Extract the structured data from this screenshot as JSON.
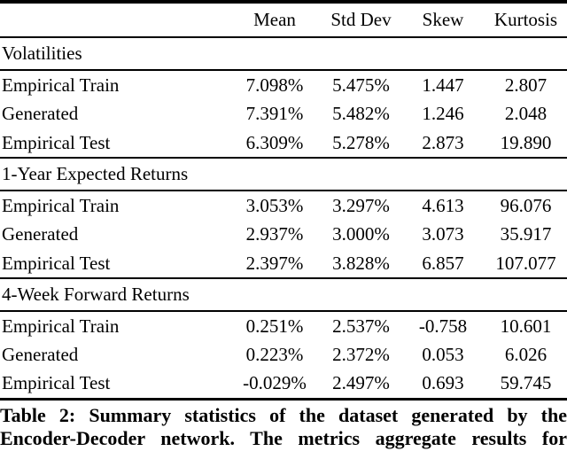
{
  "table": {
    "columns": [
      "Mean",
      "Std Dev",
      "Skew",
      "Kurtosis"
    ],
    "sections": [
      {
        "title": "Volatilities",
        "rows": [
          {
            "label": "Empirical Train",
            "values": [
              "7.098%",
              "5.475%",
              "1.447",
              "2.807"
            ]
          },
          {
            "label": "Generated",
            "values": [
              "7.391%",
              "5.482%",
              "1.246",
              "2.048"
            ]
          },
          {
            "label": "Empirical Test",
            "values": [
              "6.309%",
              "5.278%",
              "2.873",
              "19.890"
            ]
          }
        ]
      },
      {
        "title": "1-Year Expected Returns",
        "rows": [
          {
            "label": "Empirical Train",
            "values": [
              "3.053%",
              "3.297%",
              "4.613",
              "96.076"
            ]
          },
          {
            "label": "Generated",
            "values": [
              "2.937%",
              "3.000%",
              "3.073",
              "35.917"
            ]
          },
          {
            "label": "Empirical Test",
            "values": [
              "2.397%",
              "3.828%",
              "6.857",
              "107.077"
            ]
          }
        ]
      },
      {
        "title": "4-Week Forward Returns",
        "rows": [
          {
            "label": "Empirical Train",
            "values": [
              "0.251%",
              "2.537%",
              "-0.758",
              "10.601"
            ]
          },
          {
            "label": "Generated",
            "values": [
              "0.223%",
              "2.372%",
              "0.053",
              "6.026"
            ]
          },
          {
            "label": "Empirical Test",
            "values": [
              "-0.029%",
              "2.497%",
              "0.693",
              "59.745"
            ]
          }
        ]
      }
    ]
  },
  "caption": {
    "line1": "Table 2: Summary statistics of the dataset generated by the",
    "line2": "Encoder-Decoder network. The metrics aggregate results for"
  },
  "colors": {
    "text": "#000000",
    "background": "#ffffff",
    "rule": "#000000"
  }
}
